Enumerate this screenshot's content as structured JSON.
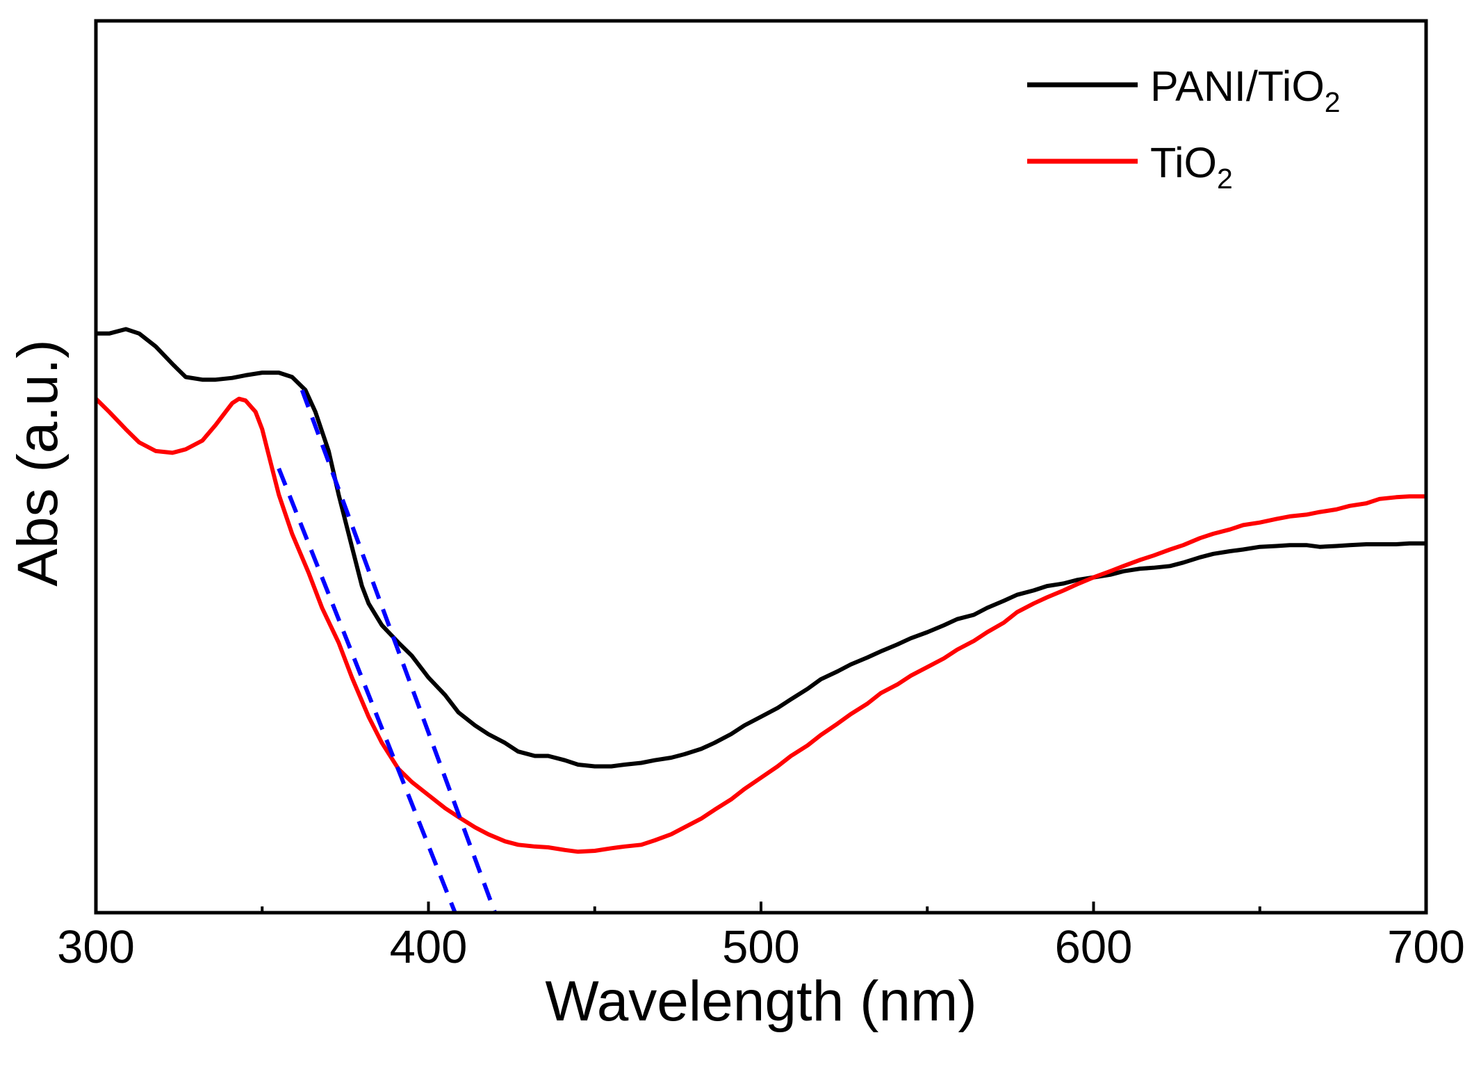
{
  "chart_data": {
    "type": "line",
    "title": "",
    "xlabel": "Wavelength (nm)",
    "ylabel": "Abs (a.u.)",
    "xlim": [
      300,
      700
    ],
    "ylim": [
      0,
      1
    ],
    "xticks": [
      300,
      400,
      500,
      600,
      700
    ],
    "xtick_labels": [
      "300",
      "400",
      "500",
      "600",
      "700"
    ],
    "minor_xticks": [
      350,
      450,
      550,
      650
    ],
    "show_y_tick_labels": false,
    "grid": false,
    "legend_position": "top-right",
    "colors": {
      "panitio2": "#000000",
      "tio2": "#ff0000",
      "tangent": "#0000ff"
    },
    "series": [
      {
        "key": "panitio2",
        "name": "PANI/TiO2",
        "legend_main": "PANI/TiO",
        "legend_sub": "2",
        "color": "#000000",
        "style": "solid",
        "x": [
          300,
          304,
          309,
          313,
          318,
          323,
          327,
          332,
          336,
          341,
          345,
          350,
          355,
          359,
          363,
          366,
          370,
          373,
          377,
          380,
          382,
          386,
          391,
          395,
          400,
          405,
          409,
          414,
          418,
          423,
          427,
          432,
          436,
          441,
          445,
          450,
          455,
          459,
          464,
          468,
          473,
          477,
          482,
          486,
          491,
          495,
          500,
          505,
          509,
          514,
          518,
          523,
          527,
          532,
          536,
          541,
          545,
          550,
          555,
          559,
          564,
          568,
          573,
          577,
          582,
          586,
          591,
          595,
          600,
          605,
          609,
          614,
          618,
          623,
          627,
          632,
          636,
          641,
          645,
          650,
          655,
          659,
          664,
          668,
          673,
          677,
          682,
          686,
          691,
          695,
          700
        ],
        "y": [
          0.665,
          0.665,
          0.67,
          0.665,
          0.65,
          0.63,
          0.615,
          0.612,
          0.612,
          0.614,
          0.617,
          0.62,
          0.62,
          0.615,
          0.6,
          0.575,
          0.53,
          0.48,
          0.42,
          0.375,
          0.355,
          0.33,
          0.31,
          0.295,
          0.27,
          0.25,
          0.23,
          0.215,
          0.205,
          0.195,
          0.185,
          0.18,
          0.18,
          0.175,
          0.17,
          0.168,
          0.168,
          0.17,
          0.172,
          0.175,
          0.178,
          0.182,
          0.188,
          0.195,
          0.205,
          0.215,
          0.225,
          0.235,
          0.245,
          0.257,
          0.268,
          0.277,
          0.285,
          0.293,
          0.3,
          0.308,
          0.315,
          0.322,
          0.33,
          0.337,
          0.342,
          0.35,
          0.358,
          0.365,
          0.37,
          0.375,
          0.378,
          0.382,
          0.385,
          0.388,
          0.392,
          0.395,
          0.396,
          0.398,
          0.402,
          0.408,
          0.412,
          0.415,
          0.417,
          0.42,
          0.421,
          0.422,
          0.422,
          0.42,
          0.421,
          0.422,
          0.423,
          0.423,
          0.423,
          0.424,
          0.424
        ]
      },
      {
        "key": "tio2",
        "name": "TiO2",
        "legend_main": "TiO",
        "legend_sub": "2",
        "color": "#ff0000",
        "style": "solid",
        "x": [
          300,
          304,
          309,
          313,
          318,
          323,
          327,
          332,
          336,
          339,
          341,
          343,
          345,
          348,
          350,
          352,
          355,
          359,
          364,
          368,
          373,
          377,
          382,
          386,
          391,
          395,
          400,
          405,
          409,
          414,
          418,
          423,
          427,
          432,
          436,
          441,
          445,
          450,
          455,
          459,
          464,
          468,
          473,
          477,
          482,
          486,
          491,
          495,
          500,
          505,
          509,
          514,
          518,
          523,
          527,
          532,
          536,
          541,
          545,
          550,
          555,
          559,
          564,
          568,
          573,
          577,
          582,
          586,
          591,
          595,
          600,
          605,
          609,
          614,
          618,
          623,
          627,
          632,
          636,
          641,
          645,
          650,
          655,
          659,
          664,
          668,
          673,
          677,
          682,
          686,
          691,
          695,
          700
        ],
        "y": [
          0.59,
          0.575,
          0.555,
          0.54,
          0.53,
          0.528,
          0.532,
          0.542,
          0.56,
          0.575,
          0.585,
          0.59,
          0.588,
          0.575,
          0.555,
          0.525,
          0.48,
          0.435,
          0.39,
          0.35,
          0.31,
          0.27,
          0.225,
          0.195,
          0.165,
          0.15,
          0.135,
          0.12,
          0.11,
          0.098,
          0.09,
          0.082,
          0.078,
          0.076,
          0.075,
          0.072,
          0.07,
          0.071,
          0.074,
          0.076,
          0.078,
          0.083,
          0.09,
          0.098,
          0.108,
          0.118,
          0.13,
          0.142,
          0.155,
          0.168,
          0.18,
          0.192,
          0.204,
          0.217,
          0.228,
          0.24,
          0.252,
          0.262,
          0.272,
          0.282,
          0.292,
          0.302,
          0.312,
          0.322,
          0.333,
          0.345,
          0.355,
          0.362,
          0.37,
          0.377,
          0.385,
          0.392,
          0.398,
          0.405,
          0.41,
          0.417,
          0.422,
          0.43,
          0.435,
          0.44,
          0.445,
          0.448,
          0.452,
          0.455,
          0.457,
          0.46,
          0.463,
          0.467,
          0.47,
          0.475,
          0.477,
          0.478,
          0.478
        ]
      }
    ],
    "tangent_lines": [
      {
        "name": "tangent-panitio2",
        "color": "#0000ff",
        "style": "dashed",
        "x": [
          362,
          420
        ],
        "y": [
          0.6,
          0.0
        ]
      },
      {
        "name": "tangent-tio2",
        "color": "#0000ff",
        "style": "dashed",
        "x": [
          355,
          408
        ],
        "y": [
          0.51,
          0.0
        ]
      }
    ]
  }
}
